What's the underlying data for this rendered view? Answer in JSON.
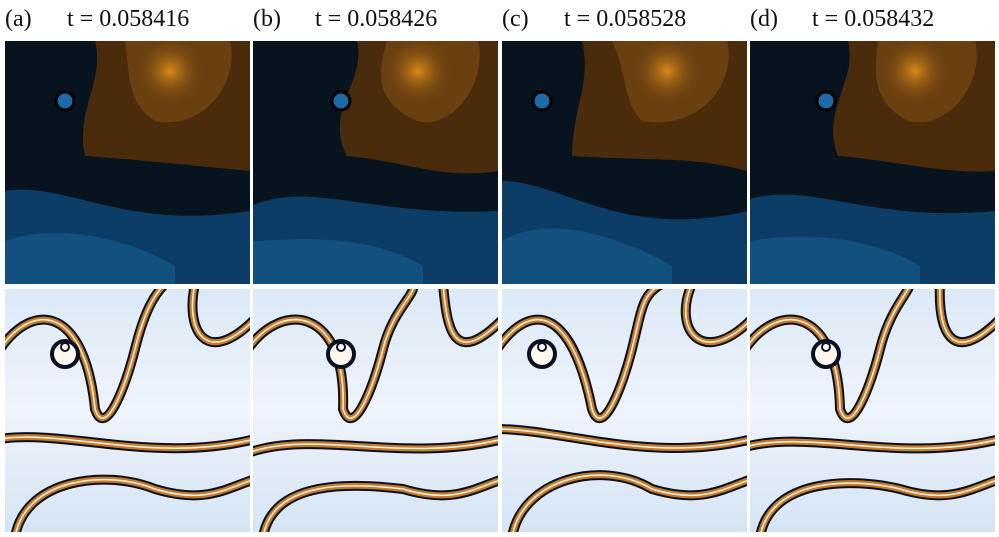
{
  "panels": [
    {
      "label": "(a)",
      "time": "t = 0.058416"
    },
    {
      "label": "(b)",
      "time": "t = 0.058426"
    },
    {
      "label": "(c)",
      "time": "t = 0.058528"
    },
    {
      "label": "(d)",
      "time": "t = 0.058432"
    }
  ]
}
